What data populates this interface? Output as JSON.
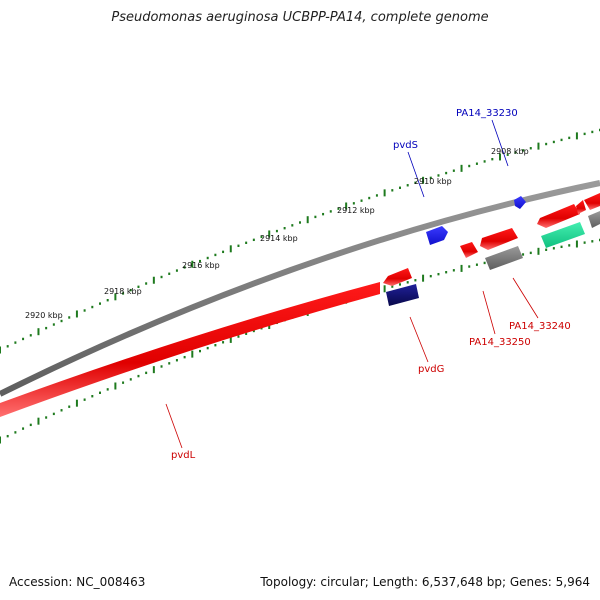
{
  "title": "Pseudomonas aeruginosa UCBPP-PA14, complete genome",
  "footer": {
    "accession": "Accession: NC_008463",
    "stats": "Topology: circular; Length: 6,537,648 bp; Genes: 5,964"
  },
  "colors": {
    "backbone": "#7a7a7a",
    "tick_marks": "#1e7a1e",
    "gene_forward_red": "#ee0000",
    "gene_reverse_red": "#ee0000",
    "gene_blue": "#1a1aee",
    "gene_navy": "#10107a",
    "gene_gray": "#6e6e6e",
    "gene_teal": "#22dd99",
    "label_red": "#cc0000",
    "label_blue": "#0000bb"
  },
  "axis_ticks": [
    "2908 kbp",
    "2910 kbp",
    "2912 kbp",
    "2914 kbp",
    "2916 kbp",
    "2918 kbp",
    "2920 kbp"
  ],
  "gene_labels": {
    "pvdL": "pvdL",
    "pvdG": "pvdG",
    "pvdS": "pvdS",
    "pa14_33230": "PA14_33230",
    "pa14_33240": "PA14_33240",
    "pa14_33250": "PA14_33250"
  }
}
